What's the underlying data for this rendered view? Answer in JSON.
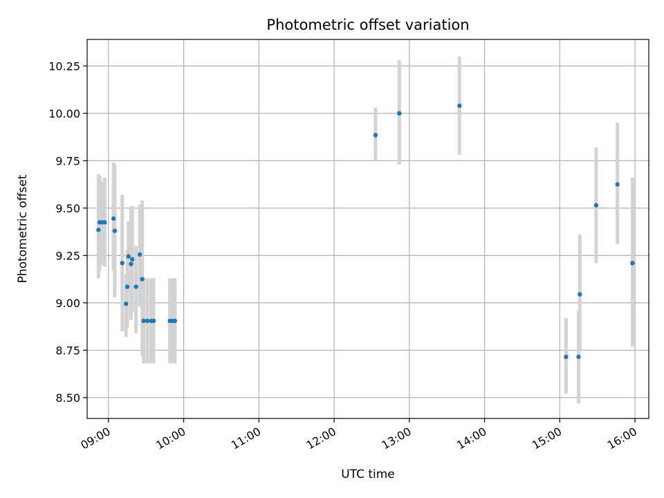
{
  "chart_data": {
    "type": "scatter",
    "title": "Photometric offset variation",
    "xlabel": "UTC time",
    "ylabel": "Photometric offset",
    "x_axis_type": "time",
    "xlim": [
      "08:43",
      "16:11"
    ],
    "ylim": [
      8.39,
      10.39
    ],
    "x_ticks": [
      {
        "time": "09:00",
        "label": "09:00"
      },
      {
        "time": "10:00",
        "label": "10:00"
      },
      {
        "time": "11:00",
        "label": "11:00"
      },
      {
        "time": "12:00",
        "label": "12:00"
      },
      {
        "time": "13:00",
        "label": "13:00"
      },
      {
        "time": "14:00",
        "label": "14:00"
      },
      {
        "time": "15:00",
        "label": "15:00"
      },
      {
        "time": "16:00",
        "label": "16:00"
      }
    ],
    "y_ticks": [
      {
        "value": 8.5,
        "label": "8.50"
      },
      {
        "value": 8.75,
        "label": "8.75"
      },
      {
        "value": 9.0,
        "label": "9.00"
      },
      {
        "value": 9.25,
        "label": "9.25"
      },
      {
        "value": 9.5,
        "label": "9.50"
      },
      {
        "value": 9.75,
        "label": "9.75"
      },
      {
        "value": 10.0,
        "label": "10.00"
      },
      {
        "value": 10.25,
        "label": "10.25"
      }
    ],
    "grid": true,
    "colors": {
      "point": "#1f77b4",
      "errorbar": "#d3d3d3",
      "grid": "#b0b0b0"
    },
    "points": [
      {
        "time": "08:52",
        "y": 9.385,
        "yerr_low": 9.13,
        "yerr_high": 9.68
      },
      {
        "time": "08:53",
        "y": 9.425,
        "yerr_low": 9.17,
        "yerr_high": 9.67
      },
      {
        "time": "08:55",
        "y": 9.425,
        "yerr_low": 9.2,
        "yerr_high": 9.64
      },
      {
        "time": "08:57",
        "y": 9.425,
        "yerr_low": 9.19,
        "yerr_high": 9.66
      },
      {
        "time": "09:04",
        "y": 9.445,
        "yerr_low": 9.17,
        "yerr_high": 9.74
      },
      {
        "time": "09:05",
        "y": 9.38,
        "yerr_low": 9.03,
        "yerr_high": 9.73
      },
      {
        "time": "09:11",
        "y": 9.21,
        "yerr_low": 8.85,
        "yerr_high": 9.57
      },
      {
        "time": "09:14",
        "y": 8.995,
        "yerr_low": 8.82,
        "yerr_high": 9.15
      },
      {
        "time": "09:15",
        "y": 9.085,
        "yerr_low": 8.87,
        "yerr_high": 9.28
      },
      {
        "time": "09:16",
        "y": 9.245,
        "yerr_low": 9.05,
        "yerr_high": 9.43
      },
      {
        "time": "09:18",
        "y": 9.205,
        "yerr_low": 8.91,
        "yerr_high": 9.5
      },
      {
        "time": "09:19",
        "y": 9.23,
        "yerr_low": 8.95,
        "yerr_high": 9.51
      },
      {
        "time": "09:22",
        "y": 9.085,
        "yerr_low": 8.84,
        "yerr_high": 9.3
      },
      {
        "time": "09:25",
        "y": 9.255,
        "yerr_low": 8.98,
        "yerr_high": 9.52
      },
      {
        "time": "09:27",
        "y": 9.125,
        "yerr_low": 8.72,
        "yerr_high": 9.54
      },
      {
        "time": "09:28",
        "y": 8.905,
        "yerr_low": 8.68,
        "yerr_high": 9.13
      },
      {
        "time": "09:31",
        "y": 8.905,
        "yerr_low": 8.68,
        "yerr_high": 9.13
      },
      {
        "time": "09:34",
        "y": 8.905,
        "yerr_low": 8.68,
        "yerr_high": 9.13
      },
      {
        "time": "09:36",
        "y": 8.905,
        "yerr_low": 8.68,
        "yerr_high": 9.13
      },
      {
        "time": "09:49",
        "y": 8.905,
        "yerr_low": 8.68,
        "yerr_high": 9.13
      },
      {
        "time": "09:51",
        "y": 8.905,
        "yerr_low": 8.68,
        "yerr_high": 9.13
      },
      {
        "time": "09:53",
        "y": 8.905,
        "yerr_low": 8.68,
        "yerr_high": 9.13
      },
      {
        "time": "12:33",
        "y": 9.885,
        "yerr_low": 9.75,
        "yerr_high": 10.03
      },
      {
        "time": "12:52",
        "y": 10.0,
        "yerr_low": 9.73,
        "yerr_high": 10.28
      },
      {
        "time": "13:40",
        "y": 10.04,
        "yerr_low": 9.78,
        "yerr_high": 10.3
      },
      {
        "time": "15:05",
        "y": 8.715,
        "yerr_low": 8.52,
        "yerr_high": 8.92
      },
      {
        "time": "15:15",
        "y": 8.715,
        "yerr_low": 8.47,
        "yerr_high": 8.96
      },
      {
        "time": "15:16",
        "y": 9.045,
        "yerr_low": 8.75,
        "yerr_high": 9.36
      },
      {
        "time": "15:29",
        "y": 9.515,
        "yerr_low": 9.21,
        "yerr_high": 9.82
      },
      {
        "time": "15:46",
        "y": 9.625,
        "yerr_low": 9.31,
        "yerr_high": 9.95
      },
      {
        "time": "15:58",
        "y": 9.21,
        "yerr_low": 8.77,
        "yerr_high": 9.66
      }
    ]
  }
}
